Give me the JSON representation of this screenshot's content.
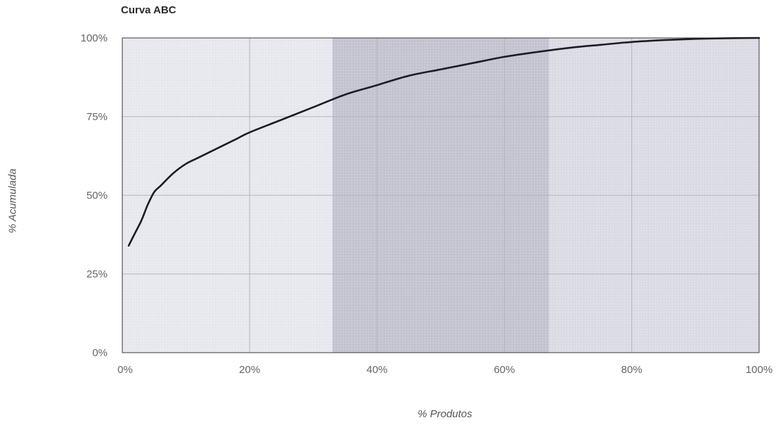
{
  "chart_data": {
    "type": "line",
    "title": "Curva ABC",
    "xlabel": "% Produtos",
    "ylabel": "% Acumulada",
    "xlim": [
      0,
      100
    ],
    "ylim": [
      0,
      100
    ],
    "x_ticks": [
      0,
      20,
      40,
      60,
      80,
      100
    ],
    "x_tick_labels": [
      "0%",
      "20%",
      "40%",
      "60%",
      "80%",
      "100%"
    ],
    "y_ticks": [
      0,
      25,
      50,
      75,
      100
    ],
    "y_tick_labels": [
      "0%",
      "25%",
      "50%",
      "75%",
      "100%"
    ],
    "grid": true,
    "zones": [
      {
        "class": "A",
        "x_range": [
          0,
          33
        ],
        "color": "#e8e9ef"
      },
      {
        "class": "B",
        "x_range": [
          33,
          67
        ],
        "color": "#c4c5d1"
      },
      {
        "class": "C",
        "x_range": [
          67,
          100
        ],
        "color": "#dcdce5"
      }
    ],
    "series": [
      {
        "color": "#1c1d24",
        "x": [
          1,
          2,
          3,
          4,
          5,
          6,
          8,
          10,
          12,
          15,
          18,
          20,
          25,
          30,
          35,
          40,
          45,
          50,
          55,
          60,
          65,
          70,
          75,
          80,
          85,
          90,
          95,
          100
        ],
        "y": [
          34,
          38,
          42,
          47,
          51,
          53,
          57,
          60,
          62,
          65,
          68,
          70,
          74,
          78,
          82,
          85,
          88,
          90,
          92,
          94,
          95.5,
          96.8,
          97.8,
          98.7,
          99.3,
          99.7,
          99.9,
          100
        ]
      }
    ]
  }
}
